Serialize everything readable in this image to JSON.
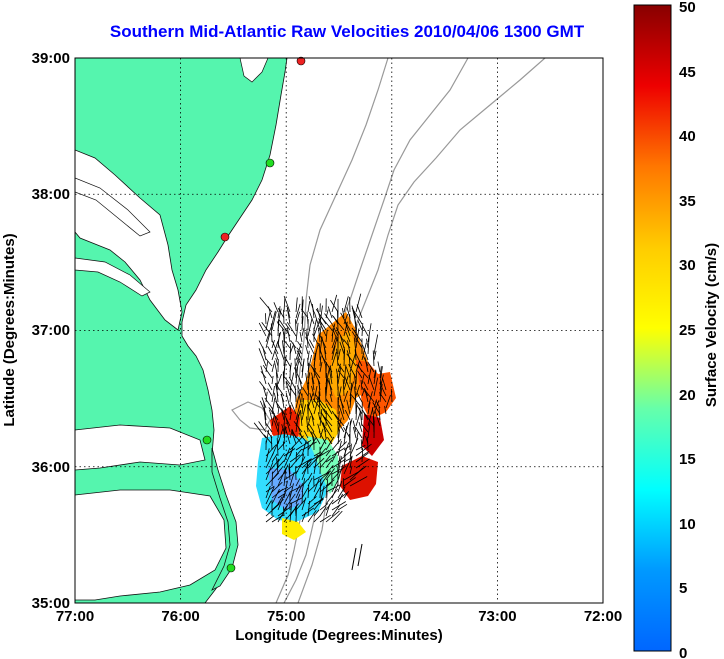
{
  "title": "Southern Mid-Atlantic Raw Velocities 2010/04/06 1300 GMT",
  "xlabel": "Longitude (Degrees:Minutes)",
  "ylabel": "Latitude (Degrees:Minutes)",
  "x_ticks": [
    "77:00",
    "76:00",
    "75:00",
    "74:00",
    "73:00",
    "72:00"
  ],
  "y_ticks": [
    "39:00",
    "38:00",
    "37:00",
    "36:00",
    "35:00"
  ],
  "colorbar": {
    "label": "Surface Velocity (cm/s)",
    "ticks": [
      "50",
      "45",
      "40",
      "35",
      "30",
      "25",
      "20",
      "15",
      "10",
      "5",
      "0"
    ],
    "range": [
      0,
      50
    ],
    "colormap": "jet"
  },
  "colors": {
    "land": "#55f5ae",
    "water": "#ffffff",
    "bathymetry": "#999999",
    "title": "#0000ff",
    "station_green": "#22dd22",
    "station_red": "#ee2222"
  },
  "chart_data": {
    "type": "heatmap",
    "title": "Southern Mid-Atlantic Raw Velocities 2010/04/06 1300 GMT",
    "xlabel": "Longitude (Degrees:Minutes)",
    "ylabel": "Latitude (Degrees:Minutes)",
    "xlim": [
      -77,
      -72
    ],
    "ylim": [
      35,
      39
    ],
    "grid": true,
    "color_range_cm_s": [
      0,
      50
    ],
    "stations": [
      {
        "lon": -74.87,
        "lat": 38.98,
        "status": "active"
      },
      {
        "lon": -75.1,
        "lat": 38.22,
        "status": "active"
      },
      {
        "lon": -75.55,
        "lat": 37.72,
        "status": "inactive"
      },
      {
        "lon": -75.74,
        "lat": 36.19,
        "status": "active"
      },
      {
        "lon": -75.47,
        "lat": 35.28,
        "status": "active"
      }
    ]
  }
}
